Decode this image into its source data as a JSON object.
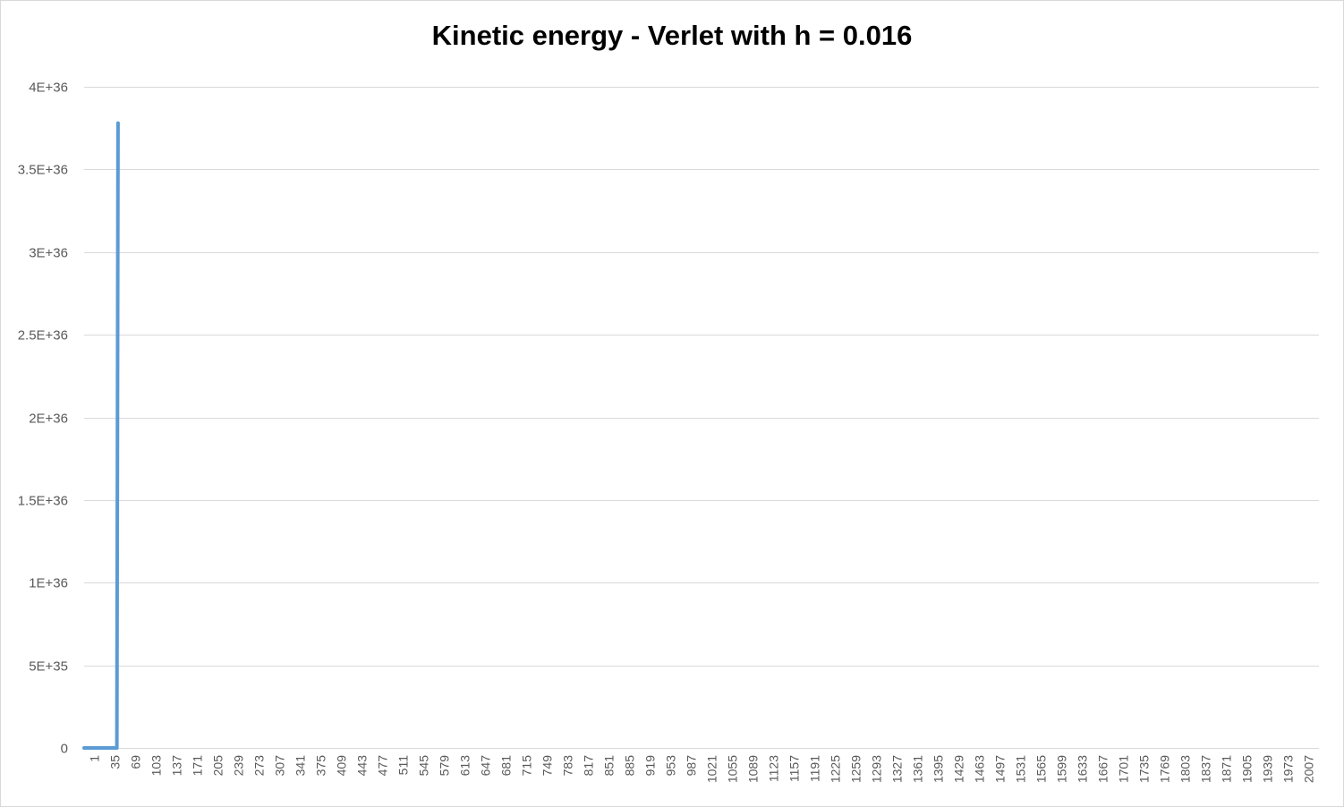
{
  "chart_data": {
    "type": "line",
    "title": "Kinetic energy - Verlet with h = 0.016",
    "xlabel": "",
    "ylabel": "",
    "ylim": [
      0,
      4e+36
    ],
    "y_ticks": [
      {
        "value": 0,
        "label": "0"
      },
      {
        "value": 5e+35,
        "label": "5E+35"
      },
      {
        "value": 1e+36,
        "label": "1E+36"
      },
      {
        "value": 1.5e+36,
        "label": "1.5E+36"
      },
      {
        "value": 2e+36,
        "label": "2E+36"
      },
      {
        "value": 2.5e+36,
        "label": "2.5E+36"
      },
      {
        "value": 3e+36,
        "label": "3E+36"
      },
      {
        "value": 3.5e+36,
        "label": "3.5E+36"
      },
      {
        "value": 4e+36,
        "label": "4E+36"
      }
    ],
    "x_ticks": [
      "1",
      "35",
      "69",
      "103",
      "137",
      "171",
      "205",
      "239",
      "273",
      "307",
      "341",
      "375",
      "409",
      "443",
      "477",
      "511",
      "545",
      "579",
      "613",
      "647",
      "681",
      "715",
      "749",
      "783",
      "817",
      "851",
      "885",
      "919",
      "953",
      "987",
      "1021",
      "1055",
      "1089",
      "1123",
      "1157",
      "1191",
      "1225",
      "1259",
      "1293",
      "1327",
      "1361",
      "1395",
      "1429",
      "1463",
      "1497",
      "1531",
      "1565",
      "1599",
      "1633",
      "1667",
      "1701",
      "1735",
      "1769",
      "1803",
      "1837",
      "1871",
      "1905",
      "1939",
      "1973",
      "2007"
    ],
    "xlim": [
      1,
      2039
    ],
    "grid": true,
    "legend": "none",
    "series": [
      {
        "color": "#5b9bd5",
        "x": [
          1,
          10,
          20,
          30,
          40,
          50,
          53,
          55,
          57
        ],
        "y": [
          0,
          0,
          0,
          0,
          0,
          0,
          0,
          0,
          3.78e+36
        ]
      }
    ]
  }
}
